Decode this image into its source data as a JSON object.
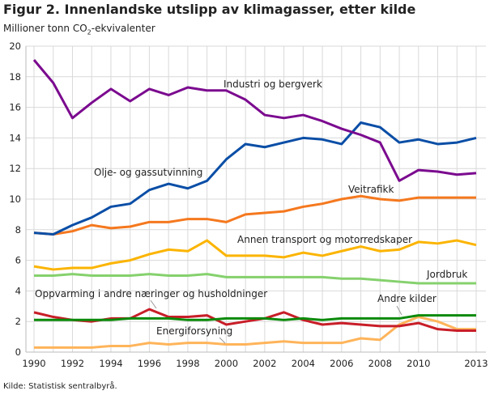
{
  "chart_data": {
    "type": "line",
    "title": "Figur 2. Innenlandske utslipp av klimagasser, etter kilde",
    "ylabel_prefix": "Millioner tonn CO",
    "ylabel_sub": "2",
    "ylabel_suffix": "-ekvivalenter",
    "source": "Kilde: Statistisk sentralbyrå.",
    "xlim": [
      1990,
      2013
    ],
    "ylim": [
      0,
      20
    ],
    "yticks": [
      0,
      2,
      4,
      6,
      8,
      10,
      12,
      14,
      16,
      18,
      20
    ],
    "xticks": [
      1990,
      1992,
      1994,
      1996,
      1998,
      2000,
      2002,
      2004,
      2006,
      2008,
      2010,
      2013
    ],
    "grid": true,
    "x": [
      1990,
      1991,
      1992,
      1993,
      1994,
      1995,
      1996,
      1997,
      1998,
      1999,
      2000,
      2001,
      2002,
      2003,
      2004,
      2005,
      2006,
      2007,
      2008,
      2009,
      2010,
      2011,
      2012,
      2013
    ],
    "series": [
      {
        "name": "Industri og bergverk",
        "color": "#7b0a8f",
        "values": [
          19.1,
          17.6,
          15.3,
          16.3,
          17.2,
          16.4,
          17.2,
          16.8,
          17.3,
          17.1,
          17.1,
          16.5,
          15.5,
          15.3,
          15.5,
          15.1,
          14.6,
          14.2,
          13.7,
          11.2,
          11.9,
          11.8,
          11.6,
          11.7
        ]
      },
      {
        "name": "Olje- og gassutvinning",
        "color": "#0a4ea6",
        "values": [
          7.8,
          7.7,
          8.3,
          8.8,
          9.5,
          9.7,
          10.6,
          11.0,
          10.7,
          11.2,
          12.6,
          13.6,
          13.4,
          13.7,
          14.0,
          13.9,
          13.6,
          15.0,
          14.7,
          13.7,
          13.9,
          13.6,
          13.7,
          14.0
        ]
      },
      {
        "name": "Veitrafikk",
        "color": "#f5781e",
        "values": [
          7.8,
          7.7,
          7.9,
          8.3,
          8.1,
          8.2,
          8.5,
          8.5,
          8.7,
          8.7,
          8.5,
          9.0,
          9.1,
          9.2,
          9.5,
          9.7,
          10.0,
          10.2,
          10.0,
          9.9,
          10.1,
          10.1,
          10.1,
          10.1
        ]
      },
      {
        "name": "Annen transport og motorredskaper",
        "color": "#fbb400",
        "values": [
          5.6,
          5.4,
          5.5,
          5.5,
          5.8,
          6.0,
          6.4,
          6.7,
          6.6,
          7.3,
          6.3,
          6.3,
          6.3,
          6.2,
          6.5,
          6.3,
          6.6,
          6.9,
          6.6,
          6.7,
          7.2,
          7.1,
          7.3,
          7.0
        ]
      },
      {
        "name": "Jordbruk",
        "color": "#85d16d",
        "values": [
          5.0,
          5.0,
          5.1,
          5.0,
          5.0,
          5.0,
          5.1,
          5.0,
          5.0,
          5.1,
          4.9,
          4.9,
          4.9,
          4.9,
          4.9,
          4.9,
          4.8,
          4.8,
          4.7,
          4.6,
          4.5,
          4.5,
          4.5,
          4.5
        ]
      },
      {
        "name": "Andre kilder",
        "color": "#0a8a0a",
        "values": [
          2.1,
          2.1,
          2.1,
          2.1,
          2.1,
          2.2,
          2.2,
          2.2,
          2.1,
          2.1,
          2.2,
          2.2,
          2.2,
          2.1,
          2.2,
          2.1,
          2.2,
          2.2,
          2.2,
          2.2,
          2.4,
          2.4,
          2.4,
          2.4
        ]
      },
      {
        "name": "Oppvarming i andre næringer og husholdninger",
        "color": "#c81e28",
        "values": [
          2.6,
          2.3,
          2.1,
          2.0,
          2.2,
          2.2,
          2.8,
          2.3,
          2.3,
          2.4,
          1.8,
          2.0,
          2.2,
          2.6,
          2.1,
          1.8,
          1.9,
          1.8,
          1.7,
          1.7,
          1.9,
          1.5,
          1.4,
          1.4
        ]
      },
      {
        "name": "Energiforsyning",
        "color": "#ffb45a",
        "values": [
          0.3,
          0.3,
          0.3,
          0.3,
          0.4,
          0.4,
          0.6,
          0.5,
          0.6,
          0.6,
          0.5,
          0.5,
          0.6,
          0.7,
          0.6,
          0.6,
          0.6,
          0.9,
          0.8,
          1.8,
          2.3,
          2.0,
          1.5,
          1.5
        ]
      }
    ]
  }
}
